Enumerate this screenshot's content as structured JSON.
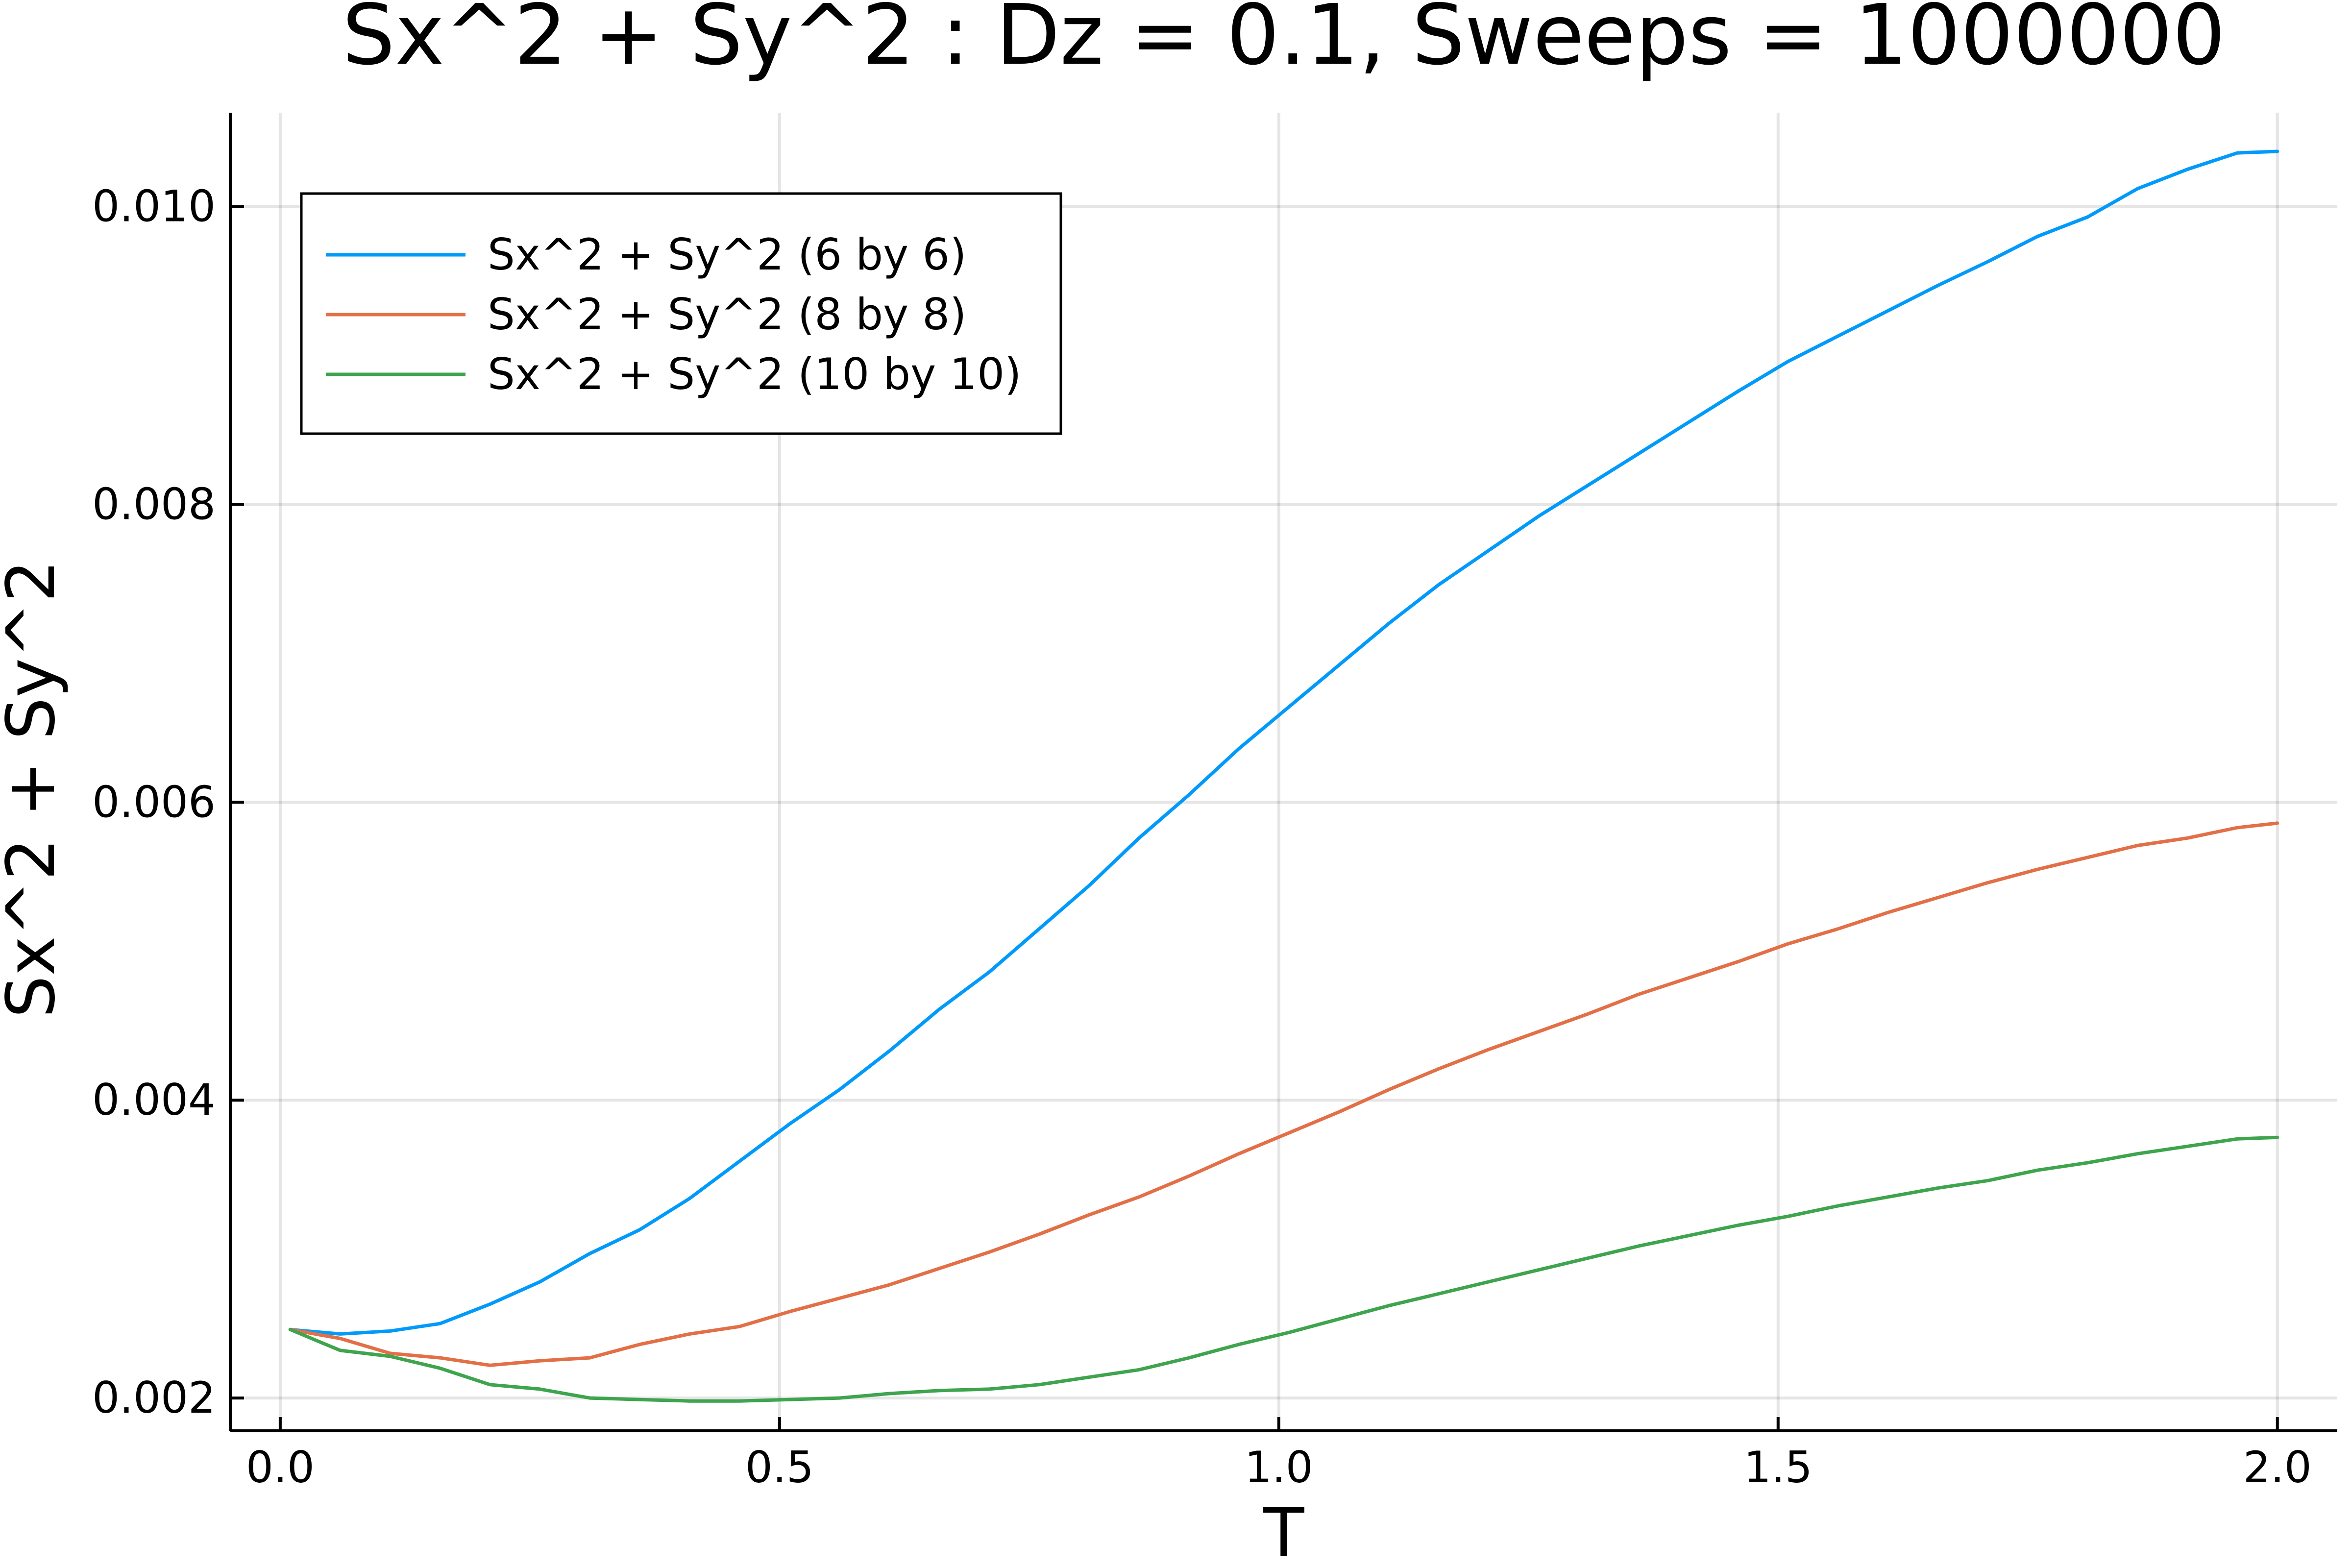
{
  "chart_data": {
    "type": "line",
    "title": "Sx^2 + Sy^2 : Dz = 0.1, Sweeps = 1000000",
    "xlabel": "T",
    "ylabel": "Sx^2 + Sy^2",
    "xlim": [
      -0.05,
      2.06
    ],
    "ylim": [
      0.00178,
      0.01063
    ],
    "xticks": [
      0.0,
      0.5,
      1.0,
      1.5,
      2.0
    ],
    "xtick_labels": [
      "0.0",
      "0.5",
      "1.0",
      "1.5",
      "2.0"
    ],
    "yticks": [
      0.002,
      0.004,
      0.006,
      0.008,
      0.01
    ],
    "ytick_labels": [
      "0.002",
      "0.004",
      "0.006",
      "0.008",
      "0.010"
    ],
    "grid": true,
    "legend_position": "top-left",
    "x": [
      0.01,
      0.06,
      0.11,
      0.16,
      0.21,
      0.26,
      0.31,
      0.36,
      0.41,
      0.46,
      0.51,
      0.56,
      0.61,
      0.66,
      0.71,
      0.76,
      0.81,
      0.86,
      0.91,
      0.96,
      1.01,
      1.06,
      1.11,
      1.16,
      1.21,
      1.26,
      1.31,
      1.36,
      1.41,
      1.46,
      1.51,
      1.56,
      1.61,
      1.66,
      1.71,
      1.76,
      1.81,
      1.86,
      1.91,
      1.96,
      2.0
    ],
    "series": [
      {
        "name": "Sx^2 + Sy^2 (6 by 6)",
        "color": "#009AFA",
        "values": [
          0.00246,
          0.00243,
          0.00245,
          0.0025,
          0.00263,
          0.00278,
          0.00297,
          0.00313,
          0.00334,
          0.00359,
          0.00384,
          0.00407,
          0.00433,
          0.00461,
          0.00486,
          0.00515,
          0.00544,
          0.00576,
          0.00605,
          0.00636,
          0.00664,
          0.00692,
          0.0072,
          0.00746,
          0.00769,
          0.00792,
          0.00813,
          0.00834,
          0.00855,
          0.00876,
          0.00896,
          0.00913,
          0.0093,
          0.00947,
          0.00963,
          0.0098,
          0.00993,
          0.01012,
          0.01025,
          0.01036,
          0.01037
        ]
      },
      {
        "name": "Sx^2 + Sy^2 (8 by 8)",
        "color": "#E36F47",
        "values": [
          0.00246,
          0.0024,
          0.0023,
          0.00227,
          0.00222,
          0.00225,
          0.00227,
          0.00236,
          0.00243,
          0.00248,
          0.00258,
          0.00267,
          0.00276,
          0.00287,
          0.00298,
          0.0031,
          0.00323,
          0.00335,
          0.00349,
          0.00364,
          0.00378,
          0.00392,
          0.00407,
          0.00421,
          0.00434,
          0.00446,
          0.00458,
          0.00471,
          0.00482,
          0.00493,
          0.00505,
          0.00515,
          0.00526,
          0.00536,
          0.00546,
          0.00555,
          0.00563,
          0.00571,
          0.00576,
          0.00583,
          0.00586
        ]
      },
      {
        "name": "Sx^2 + Sy^2 (10 by 10)",
        "color": "#3EA44E",
        "values": [
          0.00246,
          0.00232,
          0.00228,
          0.0022,
          0.00209,
          0.00206,
          0.002,
          0.00199,
          0.00198,
          0.00198,
          0.00199,
          0.002,
          0.00203,
          0.00205,
          0.00206,
          0.00209,
          0.00214,
          0.00219,
          0.00227,
          0.00236,
          0.00244,
          0.00253,
          0.00262,
          0.0027,
          0.00278,
          0.00286,
          0.00294,
          0.00302,
          0.00309,
          0.00316,
          0.00322,
          0.00329,
          0.00335,
          0.00341,
          0.00346,
          0.00353,
          0.00358,
          0.00364,
          0.00369,
          0.00374,
          0.00375
        ]
      }
    ]
  }
}
